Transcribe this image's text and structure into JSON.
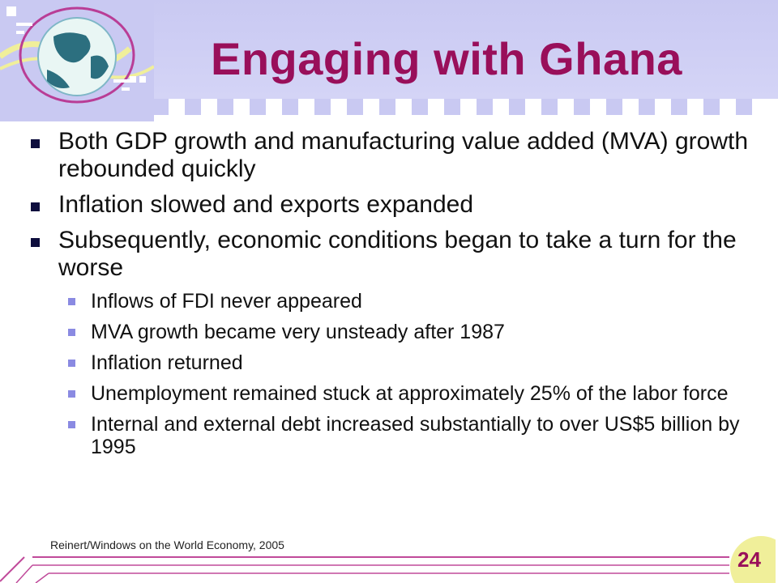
{
  "slide": {
    "title": "Engaging with Ghana",
    "bullets": [
      {
        "text": "Both GDP growth and manufacturing value added (MVA) growth rebounded quickly"
      },
      {
        "text": "Inflation slowed and exports expanded"
      },
      {
        "text": "Subsequently, economic conditions began to take a turn for the worse"
      }
    ],
    "sub_bullets": [
      "Inflows of FDI never appeared",
      "MVA growth became very unsteady after 1987",
      "Inflation returned",
      "Unemployment remained stuck at approximately 25% of the labor force",
      "Internal and external debt increased substantially to over US$5 billion by 1995"
    ],
    "footer": "Reinert/Windows on the World Economy, 2005",
    "page_number": "24"
  },
  "colors": {
    "title": "#990f5a",
    "header_band": "#c9c9f2",
    "bullet_marker": "#0d0d3d",
    "sub_marker": "#8a8ae2",
    "accent_line": "#c04a9a"
  },
  "icons": {
    "logo": "globe-icon"
  }
}
